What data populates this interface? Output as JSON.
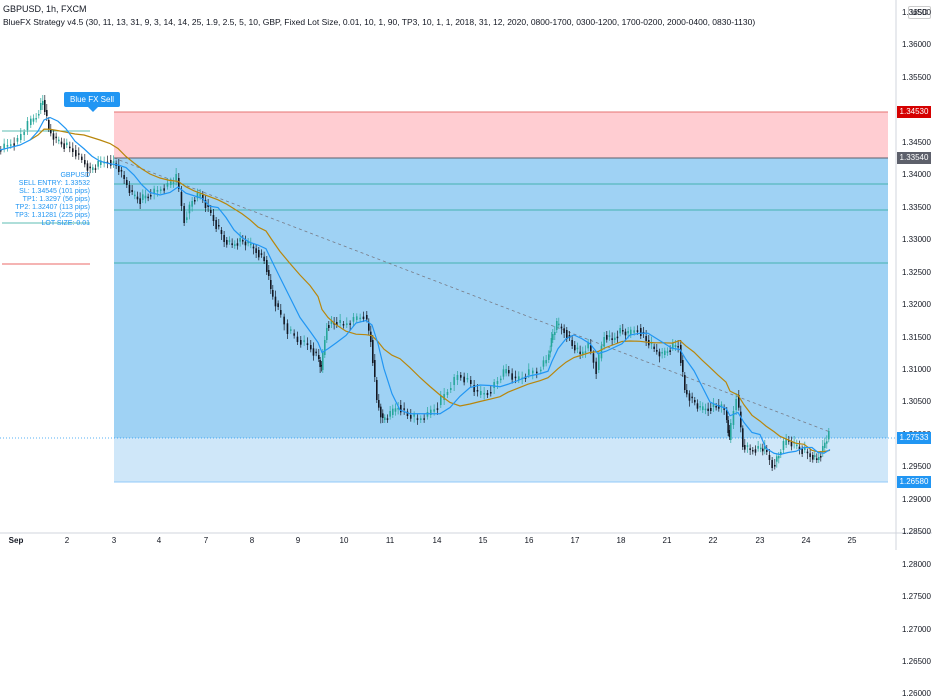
{
  "header": {
    "symbol_line": "GBPUSD, 1h, FXCM",
    "indicator_line": "BlueFX Strategy v4.5 (30, 11, 13, 31, 9, 3, 14, 14, 25, 1.9, 2.5, 5, 10, GBP, Fixed Lot Size, 0.01, 10, 1, 90, TP3, 10, 1, 1, 2018, 31, 12, 2020, 0800-1700, 0300-1200, 1700-0200, 2000-0400, 0830-1130)"
  },
  "currency_button": "USD",
  "price_axis": {
    "ticks": [
      "1.36500",
      "1.36000",
      "1.35500",
      "1.35000",
      "1.34500",
      "1.34000",
      "1.33500",
      "1.33000",
      "1.32500",
      "1.32000",
      "1.31500",
      "1.31000",
      "1.30500",
      "1.30000",
      "1.29500",
      "1.29000",
      "1.28500",
      "1.28000",
      "1.27500",
      "1.27000",
      "1.26500",
      "1.26000"
    ],
    "labels": {
      "stop": {
        "text": "1.34530",
        "color": "#d50000"
      },
      "entry": {
        "text": "1.33540",
        "color": "#5d606b"
      },
      "current": {
        "text": "1.27533",
        "color": "#2196f3"
      },
      "target": {
        "text": "1.26580",
        "color": "#2196f3"
      }
    }
  },
  "time_axis": {
    "labels": [
      "Sep",
      "2",
      "3",
      "4",
      "7",
      "8",
      "9",
      "10",
      "11",
      "14",
      "15",
      "16",
      "17",
      "18",
      "21",
      "22",
      "23",
      "24",
      "25"
    ]
  },
  "signal": {
    "label": "Blue FX Sell",
    "pair": "GBPUSD",
    "sell_entry": "SELL ENTRY: 1.33532",
    "sl": "SL: 1.34545 (101 pips)",
    "tp1": "TP1: 1.3297 (56 pips)",
    "tp2": "TP2: 1.32407 (113 pips)",
    "tp3": "TP3: 1.31281 (225 pips)",
    "lot": "LOT SIZE: 0.01"
  },
  "colors": {
    "up": "#26a69a",
    "down": "#131722",
    "ema_fast": "#2196f3",
    "ema_slow": "#b8860b",
    "profit_zone": "#9dd0f3",
    "loss_zone": "#ffcdd2"
  }
}
